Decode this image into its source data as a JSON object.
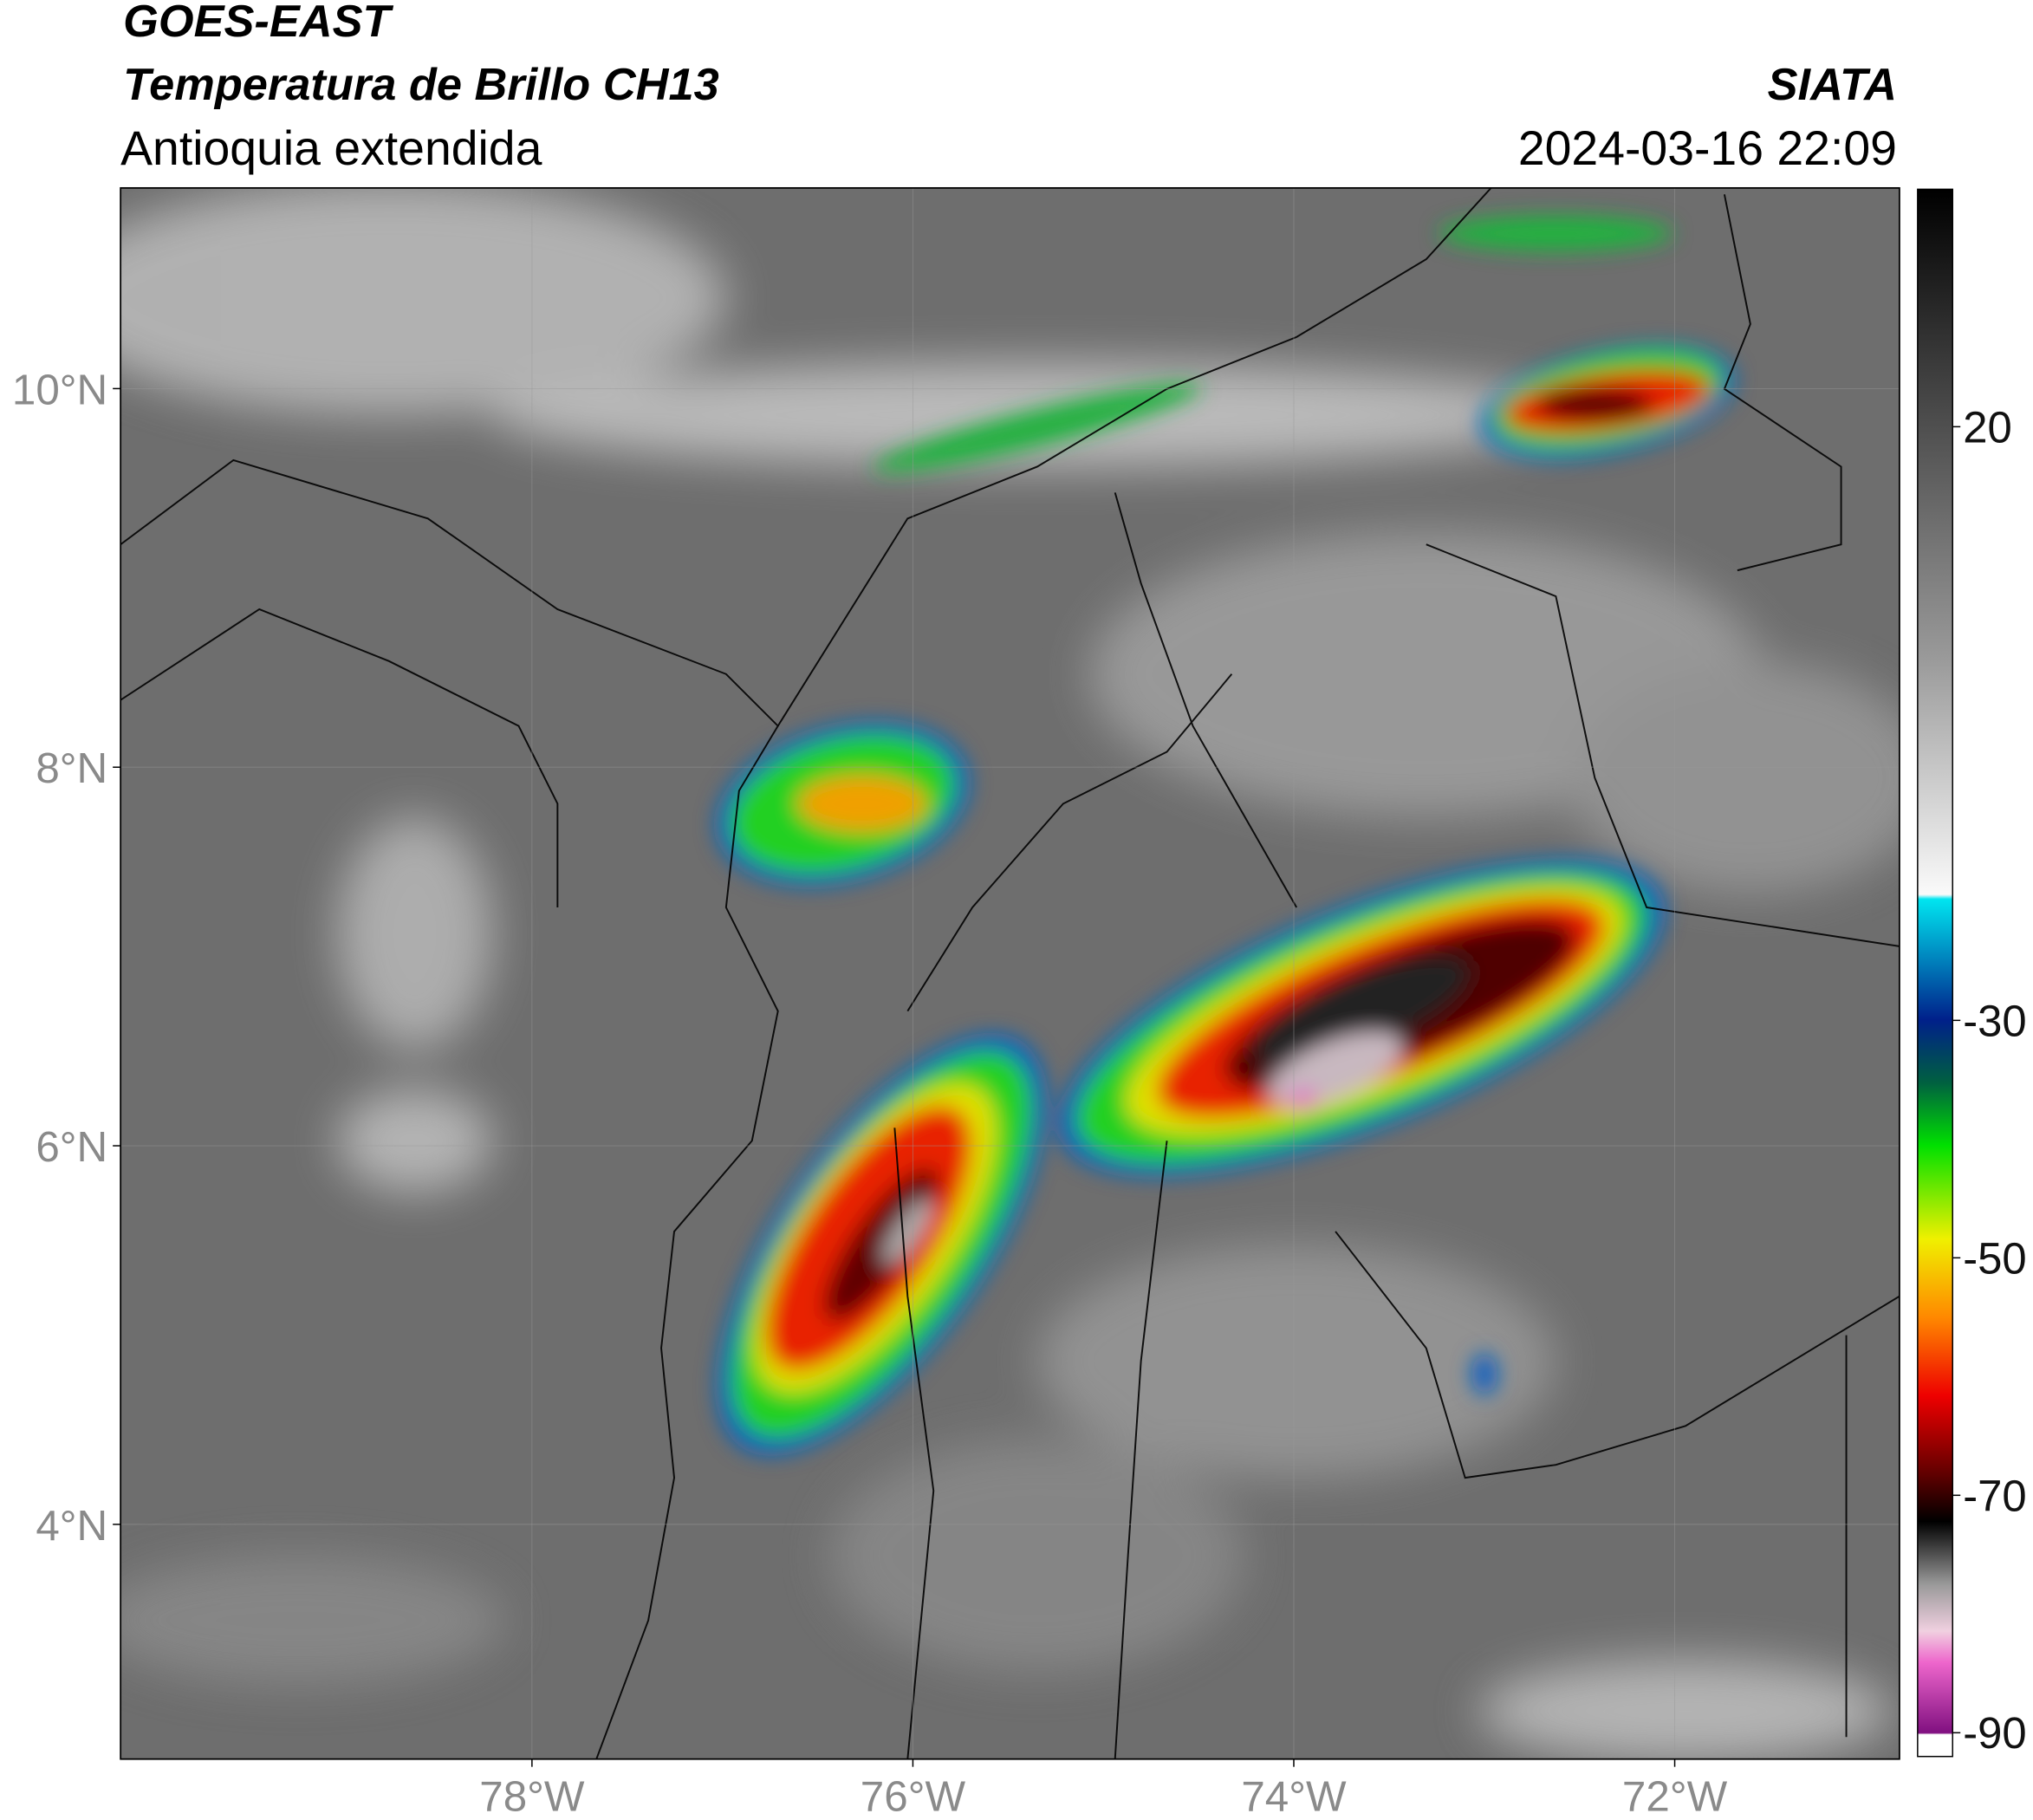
{
  "header": {
    "title": "GOES-EAST",
    "subtitle": "Temperatura de Brillo CH13",
    "region": "Antioquia extendida",
    "source": "SIATA",
    "datetime": "2024-03-16 22:09"
  },
  "map": {
    "xlim": [
      -80.16,
      -70.82
    ],
    "ylim": [
      2.76,
      11.06
    ],
    "xticks": [
      {
        "value": -78,
        "label": "78°W"
      },
      {
        "value": -76,
        "label": "76°W"
      },
      {
        "value": -74,
        "label": "74°W"
      },
      {
        "value": -72,
        "label": "72°W"
      }
    ],
    "yticks": [
      {
        "value": 4,
        "label": "4°N"
      },
      {
        "value": 6,
        "label": "6°N"
      },
      {
        "value": 8,
        "label": "8°N"
      },
      {
        "value": 10,
        "label": "10°N"
      }
    ],
    "grid": true
  },
  "colorbar": {
    "lim": [
      -92,
      40
    ],
    "ticks": [
      20,
      -30,
      -50,
      -70,
      -90
    ]
  }
}
